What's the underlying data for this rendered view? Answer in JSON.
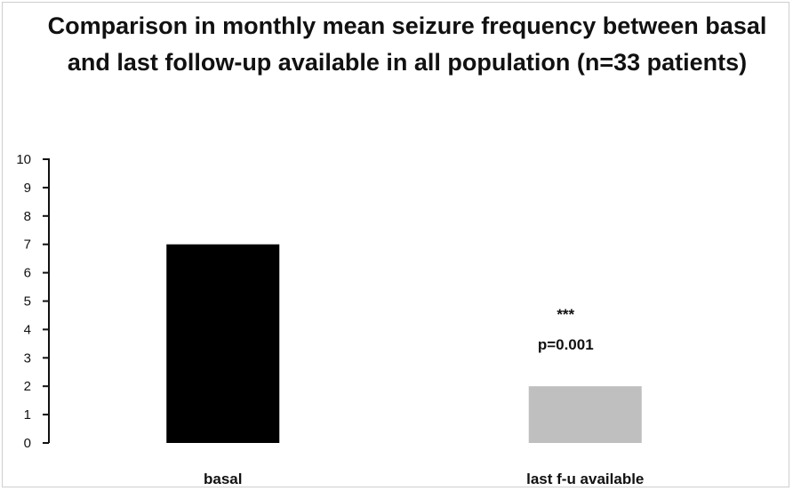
{
  "chart_data": {
    "type": "bar",
    "title": "Comparison in monthly mean seizure frequency between basal and last follow-up available in all population (n=33 patients)",
    "xlabel": "",
    "ylabel": "",
    "ylim": [
      0,
      10
    ],
    "yticks": [
      0,
      1,
      2,
      3,
      4,
      5,
      6,
      7,
      8,
      9,
      10
    ],
    "grid": false,
    "legend": "none",
    "categories": [
      "basal",
      "last f-u available"
    ],
    "values": [
      7,
      2
    ],
    "bar_colors": [
      "#000000",
      "#bfbfbf"
    ],
    "annotations": [
      {
        "category": "last f-u available",
        "lines": [
          "***",
          "p=0.001"
        ]
      }
    ]
  }
}
